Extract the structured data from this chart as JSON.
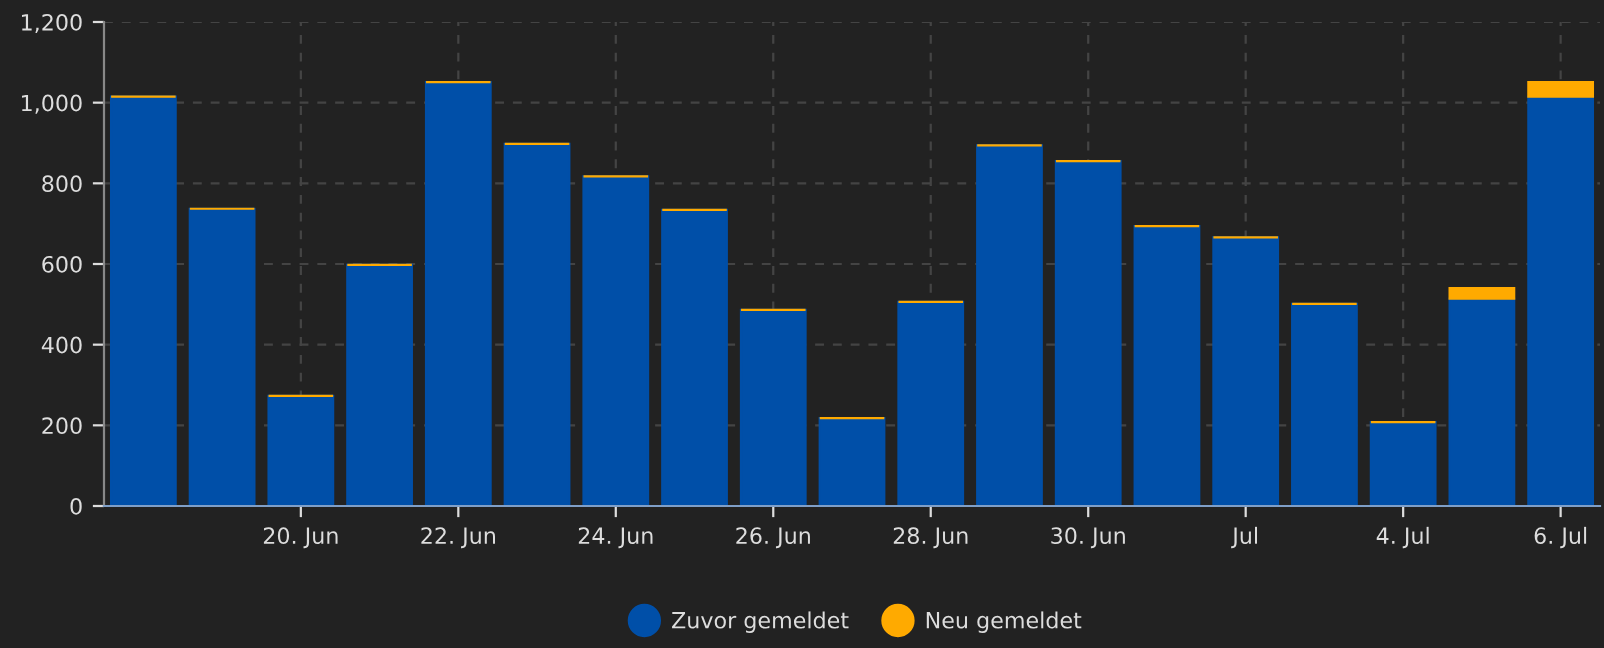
{
  "chart_data": {
    "type": "bar",
    "stacked": true,
    "categories": [
      null,
      null,
      "20. Jun",
      null,
      "22. Jun",
      null,
      "24. Jun",
      null,
      "26. Jun",
      null,
      "28. Jun",
      null,
      "30. Jun",
      null,
      "Jul",
      null,
      "4. Jul",
      null,
      "6. Jul"
    ],
    "series": [
      {
        "name": "Zuvor gemeldet",
        "color": "#004fa8",
        "values": [
          1015,
          737,
          273,
          598,
          1051,
          898,
          817,
          734,
          486,
          218,
          506,
          894,
          855,
          694,
          666,
          501,
          208,
          514,
          1015
        ]
      },
      {
        "name": "Neu gemeldet",
        "color": "#ffaa00",
        "values": [
          0,
          0,
          0,
          0,
          0,
          0,
          0,
          0,
          0,
          0,
          0,
          0,
          0,
          0,
          0,
          0,
          0,
          26,
          36
        ]
      }
    ],
    "ylim": [
      0,
      1200
    ],
    "yticks": [
      0,
      {
        "value": 200,
        "label": "200"
      },
      {
        "value": 400,
        "label": "400"
      },
      {
        "value": 600,
        "label": "600"
      },
      {
        "value": 800,
        "label": "800"
      },
      {
        "value": 1000,
        "label": "1,000"
      },
      {
        "value": 1200,
        "label": "1,200"
      }
    ],
    "grid": true,
    "legend": "bottom"
  }
}
